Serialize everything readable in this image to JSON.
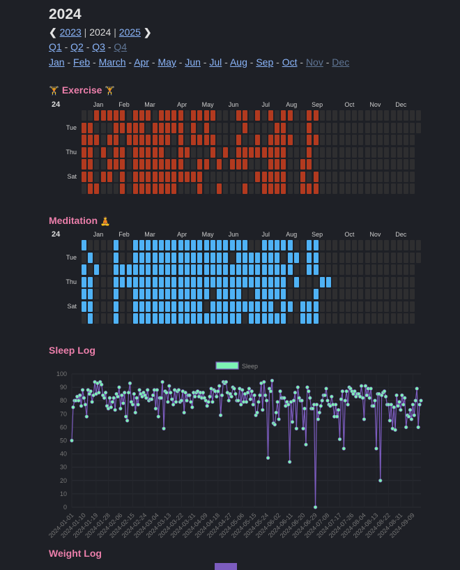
{
  "header": {
    "title": "2024",
    "year_nav": {
      "prev": "2023",
      "current": "2024",
      "next": "2025",
      "divider": "|"
    },
    "quarters": [
      {
        "label": "Q1",
        "active": true
      },
      {
        "label": "Q2",
        "active": true
      },
      {
        "label": "Q3",
        "active": true
      },
      {
        "label": "Q4",
        "active": false
      }
    ],
    "months": [
      {
        "label": "Jan",
        "active": true
      },
      {
        "label": "Feb",
        "active": true
      },
      {
        "label": "March",
        "active": true
      },
      {
        "label": "Apr",
        "active": true
      },
      {
        "label": "May",
        "active": true
      },
      {
        "label": "Jun",
        "active": true
      },
      {
        "label": "Jul",
        "active": true
      },
      {
        "label": "Aug",
        "active": true
      },
      {
        "label": "Sep",
        "active": true
      },
      {
        "label": "Oct",
        "active": true
      },
      {
        "label": "Nov",
        "active": false
      },
      {
        "label": "Dec",
        "active": false
      }
    ],
    "separator": "-"
  },
  "heatmap_common": {
    "year_label": "24",
    "month_labels": [
      "Jan",
      "Feb",
      "Mar",
      "Apr",
      "May",
      "Jun",
      "Jul",
      "Aug",
      "Sep",
      "Oct",
      "Nov",
      "Dec"
    ],
    "day_labels": [
      "",
      "Tue",
      "",
      "Thu",
      "",
      "Sat",
      ""
    ],
    "empty_color": "#2e2e30"
  },
  "exercise": {
    "title": "Exercise",
    "icon": "weightlifter-emoji",
    "color": "#b23a1f",
    "rows": [
      "00111110111011110111100011010101100110000000000000000",
      "11000111110111110101000001000011000100000000000000000",
      "1110110111111101011110001001011110011000000000000000",
      "1101011011111001100010101111111100010000000000000000",
      "1100111011111111001101011100011100110000000000000000",
      "1101101011111111111000000001111100101000000000000000",
      "0110001011111110001001000100111100111000000000000000"
    ]
  },
  "meditation": {
    "title": "Meditation",
    "icon": "person-in-lotus-position-emoji",
    "color": "#4fb2f5",
    "rows": [
      "10000100111111111111111111001111100110000000000000000",
      "01000100111111111111111011111110110110000000000000000",
      "1010011111111111111111111111111110011000000000000000",
      "1100011111111111111111111111111101000110000000000000",
      "1100010011111111111101111001111100001000000000000000",
      "1100010011111111111011111111110110111000000000000000",
      "0100010011111111111111111011111100111000000000000000"
    ]
  },
  "sleep": {
    "title": "Sleep Log",
    "chart_data": {
      "type": "line",
      "title": "",
      "xlabel": "",
      "ylabel": "",
      "ylim": [
        0,
        100
      ],
      "y_ticks": [
        0,
        10,
        20,
        30,
        40,
        50,
        60,
        70,
        80,
        90,
        100
      ],
      "x_tick_labels": [
        "2024-01-01",
        "2024-01-10",
        "2024-01-19",
        "2024-01-28",
        "2024-02-06",
        "2024-02-15",
        "2024-02-24",
        "2024-03-04",
        "2024-03-13",
        "2024-03-22",
        "2024-03-31",
        "2024-04-09",
        "2024-04-18",
        "2024-04-27",
        "2024-05-06",
        "2024-05-15",
        "2024-05-24",
        "2024-06-02",
        "2024-06-11",
        "2024-06-20",
        "2024-06-29",
        "2024-07-08",
        "2024-07-17",
        "2024-07-26",
        "2024-08-04",
        "2024-08-13",
        "2024-08-22",
        "2024-08-31",
        "2024-09-09"
      ],
      "grid": true,
      "legend": "top-center",
      "series": [
        {
          "name": "Sleep",
          "line_color": "#7c5cbf",
          "point_color": "#7df3b4",
          "values_by_month": {
            "2024-01": [
              50,
              75,
              80,
              80,
              83,
              80,
              84,
              76,
              88,
              82,
              77,
              68,
              88,
              85,
              87,
              79,
              84,
              94,
              85,
              93,
              86,
              94,
              92,
              84,
              82,
              86,
              76,
              74,
              82,
              75,
              79
            ],
            "2024-02": [
              82,
              73,
              85,
              83,
              90,
              74,
              84,
              78,
              86,
              68,
              65,
              86,
              93,
              79,
              77,
              85,
              71,
              82,
              77,
              88,
              85,
              83,
              86,
              84,
              82,
              88,
              80,
              81,
              81
            ],
            "2024-03": [
              84,
              88,
              74,
              88,
              68,
              82,
              82,
              94,
              59,
              87,
              86,
              79,
              91,
              86,
              81,
              77,
              88,
              79,
              87,
              88,
              79,
              80,
              87,
              71,
              86,
              80,
              84,
              84,
              79,
              75,
              86
            ],
            "2024-04": [
              83,
              86,
              87,
              83,
              86,
              82,
              86,
              82,
              80,
              76,
              79,
              83,
              89,
              79,
              88,
              87,
              83,
              87,
              91,
              69,
              84,
              94,
              93,
              94,
              86,
              80,
              85,
              83,
              90,
              89
            ],
            "2024-05": [
              85,
              80,
              80,
              89,
              77,
              88,
              79,
              85,
              79,
              86,
              89,
              81,
              87,
              77,
              84,
              69,
              71,
              79,
              84,
              93,
              73,
              94,
              84,
              80,
              37,
              89,
              87,
              95,
              63,
              62,
              71
            ],
            "2024-06": [
              79,
              66,
              87,
              82,
              82,
              82,
              76,
              79,
              77,
              34,
              79,
              64,
              80,
              86,
              59,
              90,
              82,
              80,
              80,
              59,
              74,
              47,
              90,
              87,
              82,
              74,
              74,
              77,
              0,
              77
            ],
            "2024-07": [
              66,
              71,
              76,
              80,
              84,
              84,
              89,
              80,
              77,
              76,
              83,
              77,
              68,
              77,
              68,
              73,
              51,
              81,
              87,
              44,
              80,
              87,
              77,
              90,
              89,
              87,
              85,
              87,
              83,
              85,
              85
            ],
            "2024-08": [
              83,
              91,
              82,
              66,
              91,
              84,
              89,
              82,
              89,
              76,
              76,
              80,
              44,
              85,
              85,
              20,
              84,
              86,
              87,
              83,
              77,
              77,
              65,
              77,
              59,
              75,
              58,
              84,
              76,
              79,
              73
            ],
            "2024-09": [
              84,
              77,
              82,
              60,
              69,
              68,
              73,
              66,
              77,
              69,
              80,
              89,
              60,
              77,
              80
            ]
          }
        }
      ]
    }
  },
  "weight": {
    "title": "Weight Log",
    "legend_color": "#7c5cbf"
  }
}
